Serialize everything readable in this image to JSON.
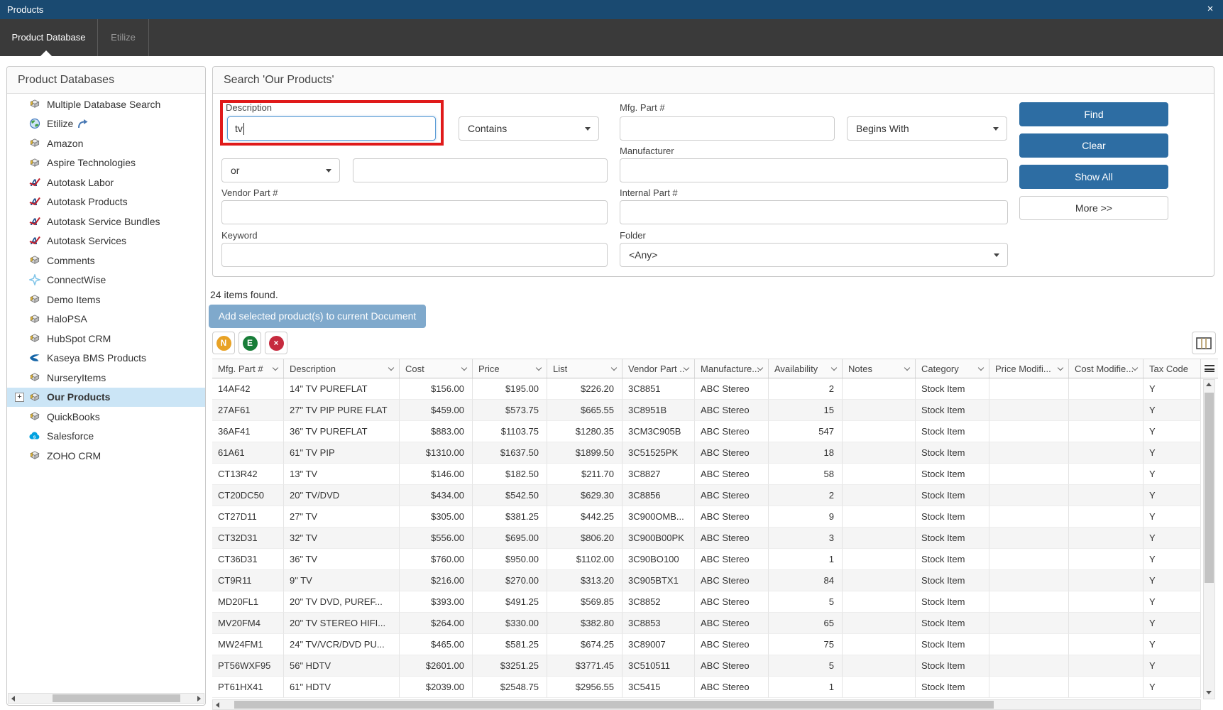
{
  "window": {
    "title": "Products",
    "close_glyph": "×"
  },
  "tabs": [
    {
      "label": "Product Database",
      "active": true
    },
    {
      "label": "Etilize",
      "active": false
    }
  ],
  "sidebar": {
    "header": "Product Databases",
    "items": [
      {
        "label": "Multiple Database Search",
        "icon": "database"
      },
      {
        "label": "Etilize",
        "icon": "globe",
        "trailing_icon": "redirect-arrow"
      },
      {
        "label": "Amazon",
        "icon": "database"
      },
      {
        "label": "Aspire Technologies",
        "icon": "database"
      },
      {
        "label": "Autotask Labor",
        "icon": "autotask"
      },
      {
        "label": "Autotask Products",
        "icon": "autotask"
      },
      {
        "label": "Autotask Service Bundles",
        "icon": "autotask"
      },
      {
        "label": "Autotask Services",
        "icon": "autotask"
      },
      {
        "label": "Comments",
        "icon": "database"
      },
      {
        "label": "ConnectWise",
        "icon": "connectwise"
      },
      {
        "label": "Demo Items",
        "icon": "database"
      },
      {
        "label": "HaloPSA",
        "icon": "database"
      },
      {
        "label": "HubSpot CRM",
        "icon": "database"
      },
      {
        "label": "Kaseya BMS Products",
        "icon": "kaseya"
      },
      {
        "label": "NurseryItems",
        "icon": "database"
      },
      {
        "label": "Our Products",
        "icon": "database",
        "selected": true,
        "expander": "+"
      },
      {
        "label": "QuickBooks",
        "icon": "database"
      },
      {
        "label": "Salesforce",
        "icon": "salesforce"
      },
      {
        "label": "ZOHO CRM",
        "icon": "database"
      }
    ]
  },
  "search": {
    "title": "Search 'Our Products'",
    "fields": {
      "description": {
        "label": "Description",
        "value": "tv",
        "match_type": "Contains"
      },
      "connector": {
        "value": "or"
      },
      "extra_term": {
        "value": ""
      },
      "mfg_part": {
        "label": "Mfg. Part #",
        "value": "",
        "match_type": "Begins With"
      },
      "manufacturer": {
        "label": "Manufacturer",
        "value": ""
      },
      "vendor_part": {
        "label": "Vendor Part #",
        "value": ""
      },
      "internal_part": {
        "label": "Internal Part #",
        "value": ""
      },
      "keyword": {
        "label": "Keyword",
        "value": ""
      },
      "folder": {
        "label": "Folder",
        "value": "<Any>"
      }
    },
    "buttons": {
      "find": "Find",
      "clear": "Clear",
      "show_all": "Show All",
      "more": "More >>"
    }
  },
  "results": {
    "count_text": "24 items found.",
    "add_button": "Add selected product(s) to current Document",
    "row_action_icons": [
      {
        "name": "new-item",
        "letter": "N",
        "color": "#e8a225"
      },
      {
        "name": "edit-item",
        "letter": "E",
        "color": "#187d38"
      },
      {
        "name": "delete-item",
        "letter": "×",
        "color": "#c62a3e"
      }
    ]
  },
  "table": {
    "columns": [
      {
        "label": "Mfg. Part #",
        "align": "left",
        "sort": true
      },
      {
        "label": "Description",
        "align": "left",
        "sort": true
      },
      {
        "label": "Cost",
        "align": "right",
        "sort": true
      },
      {
        "label": "Price",
        "align": "right",
        "sort": true
      },
      {
        "label": "List",
        "align": "right",
        "sort": true
      },
      {
        "label": "Vendor Part ..",
        "align": "left",
        "sort": true
      },
      {
        "label": "Manufacture...",
        "align": "left",
        "sort": true
      },
      {
        "label": "Availability",
        "align": "right",
        "sort": true
      },
      {
        "label": "Notes",
        "align": "left",
        "sort": true
      },
      {
        "label": "Category",
        "align": "left",
        "sort": true
      },
      {
        "label": "Price Modifi...",
        "align": "left",
        "sort": true
      },
      {
        "label": "Cost Modifie...",
        "align": "left",
        "sort": true
      },
      {
        "label": "Tax Code",
        "align": "left",
        "sort": false
      }
    ],
    "rows": [
      [
        "14AF42",
        "14\" TV PUREFLAT",
        "$156.00",
        "$195.00",
        "$226.20",
        "3C8851",
        "ABC Stereo",
        "2",
        "",
        "Stock Item",
        "",
        "",
        "Y"
      ],
      [
        "27AF61",
        "27\" TV PIP PURE FLAT",
        "$459.00",
        "$573.75",
        "$665.55",
        "3C8951B",
        "ABC Stereo",
        "15",
        "",
        "Stock Item",
        "",
        "",
        "Y"
      ],
      [
        "36AF41",
        "36\" TV PUREFLAT",
        "$883.00",
        "$1103.75",
        "$1280.35",
        "3CM3C905B",
        "ABC Stereo",
        "547",
        "",
        "Stock Item",
        "",
        "",
        "Y"
      ],
      [
        "61A61",
        "61\" TV PIP",
        "$1310.00",
        "$1637.50",
        "$1899.50",
        "3C51525PK",
        "ABC Stereo",
        "18",
        "",
        "Stock Item",
        "",
        "",
        "Y"
      ],
      [
        "CT13R42",
        "13\" TV",
        "$146.00",
        "$182.50",
        "$211.70",
        "3C8827",
        "ABC Stereo",
        "58",
        "",
        "Stock Item",
        "",
        "",
        "Y"
      ],
      [
        "CT20DC50",
        "20\" TV/DVD",
        "$434.00",
        "$542.50",
        "$629.30",
        "3C8856",
        "ABC Stereo",
        "2",
        "",
        "Stock Item",
        "",
        "",
        "Y"
      ],
      [
        "CT27D11",
        "27\" TV",
        "$305.00",
        "$381.25",
        "$442.25",
        "3C900OMB...",
        "ABC Stereo",
        "9",
        "",
        "Stock Item",
        "",
        "",
        "Y"
      ],
      [
        "CT32D31",
        "32\" TV",
        "$556.00",
        "$695.00",
        "$806.20",
        "3C900B00PK",
        "ABC Stereo",
        "3",
        "",
        "Stock Item",
        "",
        "",
        "Y"
      ],
      [
        "CT36D31",
        "36\" TV",
        "$760.00",
        "$950.00",
        "$1102.00",
        "3C90BO100",
        "ABC Stereo",
        "1",
        "",
        "Stock Item",
        "",
        "",
        "Y"
      ],
      [
        "CT9R11",
        "9\" TV",
        "$216.00",
        "$270.00",
        "$313.20",
        "3C905BTX1",
        "ABC Stereo",
        "84",
        "",
        "Stock Item",
        "",
        "",
        "Y"
      ],
      [
        "MD20FL1",
        "20\" TV DVD, PUREF...",
        "$393.00",
        "$491.25",
        "$569.85",
        "3C8852",
        "ABC Stereo",
        "5",
        "",
        "Stock Item",
        "",
        "",
        "Y"
      ],
      [
        "MV20FM4",
        "20\" TV STEREO HIFI...",
        "$264.00",
        "$330.00",
        "$382.80",
        "3C8853",
        "ABC Stereo",
        "65",
        "",
        "Stock Item",
        "",
        "",
        "Y"
      ],
      [
        "MW24FM1",
        "24\" TV/VCR/DVD PU...",
        "$465.00",
        "$581.25",
        "$674.25",
        "3C89007",
        "ABC Stereo",
        "75",
        "",
        "Stock Item",
        "",
        "",
        "Y"
      ],
      [
        "PT56WXF95",
        "56\" HDTV",
        "$2601.00",
        "$3251.25",
        "$3771.45",
        "3C510511",
        "ABC Stereo",
        "5",
        "",
        "Stock Item",
        "",
        "",
        "Y"
      ],
      [
        "PT61HX41",
        "61\" HDTV",
        "$2039.00",
        "$2548.75",
        "$2956.55",
        "3C5415",
        "ABC Stereo",
        "1",
        "",
        "Stock Item",
        "",
        "",
        "Y"
      ]
    ]
  }
}
